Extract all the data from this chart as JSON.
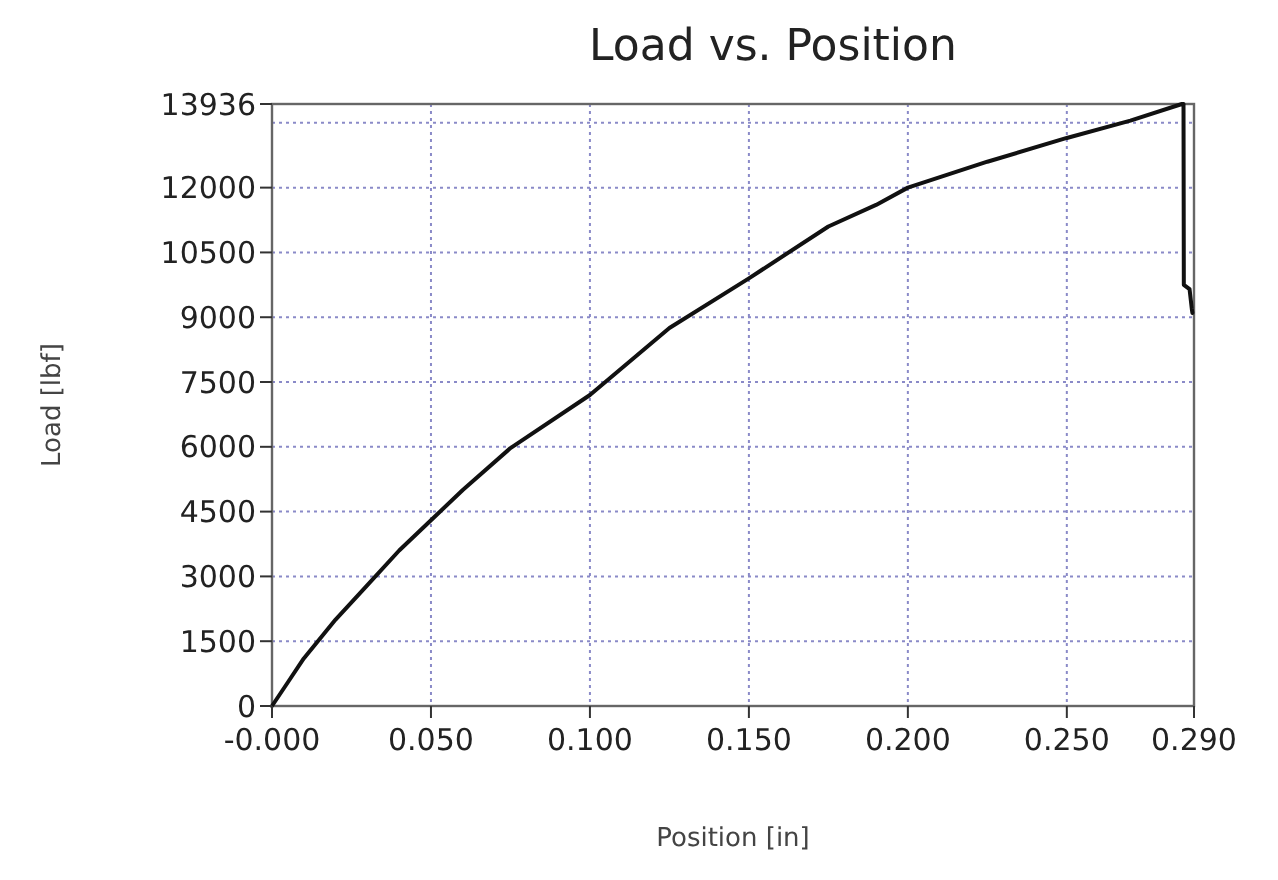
{
  "chart_data": {
    "type": "line",
    "title": "Load vs. Position",
    "xlabel": "Position [in]",
    "ylabel": "Load [lbf]",
    "x": [
      0,
      0.005,
      0.01,
      0.02,
      0.03,
      0.04,
      0.05,
      0.06,
      0.075,
      0.1,
      0.125,
      0.15,
      0.175,
      0.19,
      0.2,
      0.225,
      0.25,
      0.27,
      0.2862,
      0.2867,
      0.2868,
      0.2886,
      0.2893,
      0.2895
    ],
    "series": [
      {
        "color": "#111111",
        "values": [
          0,
          550,
          1100,
          2000,
          2800,
          3600,
          4300,
          5000,
          5970,
          7200,
          8750,
          9900,
          11100,
          11600,
          12000,
          12600,
          13150,
          13550,
          13936,
          13936,
          9750,
          9650,
          9200,
          9100
        ]
      }
    ],
    "xlim": [
      0,
      0.29
    ],
    "ylim": [
      0,
      13936
    ],
    "xticks": [
      {
        "value": 0,
        "label": "-0.000"
      },
      {
        "value": 0.05,
        "label": "0.050"
      },
      {
        "value": 0.1,
        "label": "0.100"
      },
      {
        "value": 0.15,
        "label": "0.150"
      },
      {
        "value": 0.2,
        "label": "0.200"
      },
      {
        "value": 0.25,
        "label": "0.250"
      },
      {
        "value": 0.29,
        "label": "0.290"
      }
    ],
    "yticks": [
      0,
      1500,
      3000,
      4500,
      6000,
      7500,
      9000,
      10500,
      12000,
      {
        "value": 13500,
        "label": null
      },
      13936
    ],
    "grid": true,
    "line_style": "solid",
    "marker": "none"
  }
}
